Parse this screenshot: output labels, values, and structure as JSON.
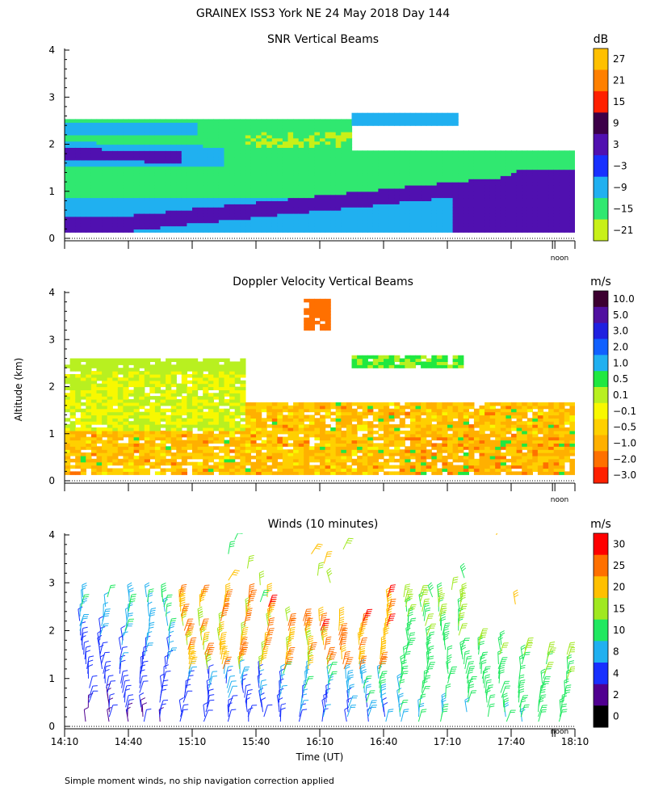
{
  "header": {
    "title": "GRAINEX ISS3 York NE  24 May 2018 Day 144",
    "y_axis_label": "Altitude (km)",
    "x_axis_label": "Time (UT)",
    "footnote": "Simple moment winds, no ship navigation correction applied",
    "noon_label": "noon"
  },
  "chart_data": [
    {
      "type": "heatmap",
      "title": "SNR Vertical Beams",
      "x_range_hours_ut": [
        14.1667,
        18.1667
      ],
      "ylim": [
        0,
        4
      ],
      "yticks": [
        0,
        1,
        2,
        3,
        4
      ],
      "colorbar": {
        "unit": "dB",
        "labels": [
          "27",
          "21",
          "15",
          "9",
          "3",
          "−3",
          "−9",
          "−15",
          "−21"
        ],
        "colors": [
          "#ffc000",
          "#ff8000",
          "#ff2000",
          "#3c0048",
          "#5010b0",
          "#1830ff",
          "#20b0f0",
          "#30e870",
          "#c8f018"
        ]
      }
    },
    {
      "type": "heatmap",
      "title": "Doppler Velocity Vertical Beams",
      "x_range_hours_ut": [
        14.1667,
        18.1667
      ],
      "ylim": [
        0,
        4
      ],
      "yticks": [
        0,
        1,
        2,
        3,
        4
      ],
      "colorbar": {
        "unit": "m/s",
        "labels": [
          "10.0",
          "5.0",
          "3.0",
          "2.0",
          "1.0",
          "0.5",
          "0.1",
          "−0.1",
          "−0.5",
          "−1.0",
          "−2.0",
          "−3.0"
        ],
        "colors": [
          "#3c0030",
          "#5010a0",
          "#2020e0",
          "#1060ff",
          "#20b0f0",
          "#20e840",
          "#b8f020",
          "#f8f800",
          "#ffd000",
          "#ffb000",
          "#ff7000",
          "#ff2000"
        ]
      }
    },
    {
      "type": "scatter",
      "title": "Winds (10 minutes)",
      "x_range_hours_ut": [
        14.1667,
        18.1667
      ],
      "xticks": [
        "14:10",
        "14:40",
        "15:10",
        "15:40",
        "16:10",
        "16:40",
        "17:10",
        "17:40",
        "18:10"
      ],
      "ylim": [
        0,
        4
      ],
      "yticks": [
        0,
        1,
        2,
        3,
        4
      ],
      "colorbar": {
        "unit": "m/s",
        "labels": [
          "30",
          "25",
          "20",
          "15",
          "10",
          "8",
          "4",
          "2",
          "0"
        ],
        "colors": [
          "#ff0000",
          "#ff7000",
          "#ffc000",
          "#a0e820",
          "#20e860",
          "#20b0f0",
          "#1830ff",
          "#500090",
          "#000000"
        ]
      }
    }
  ]
}
